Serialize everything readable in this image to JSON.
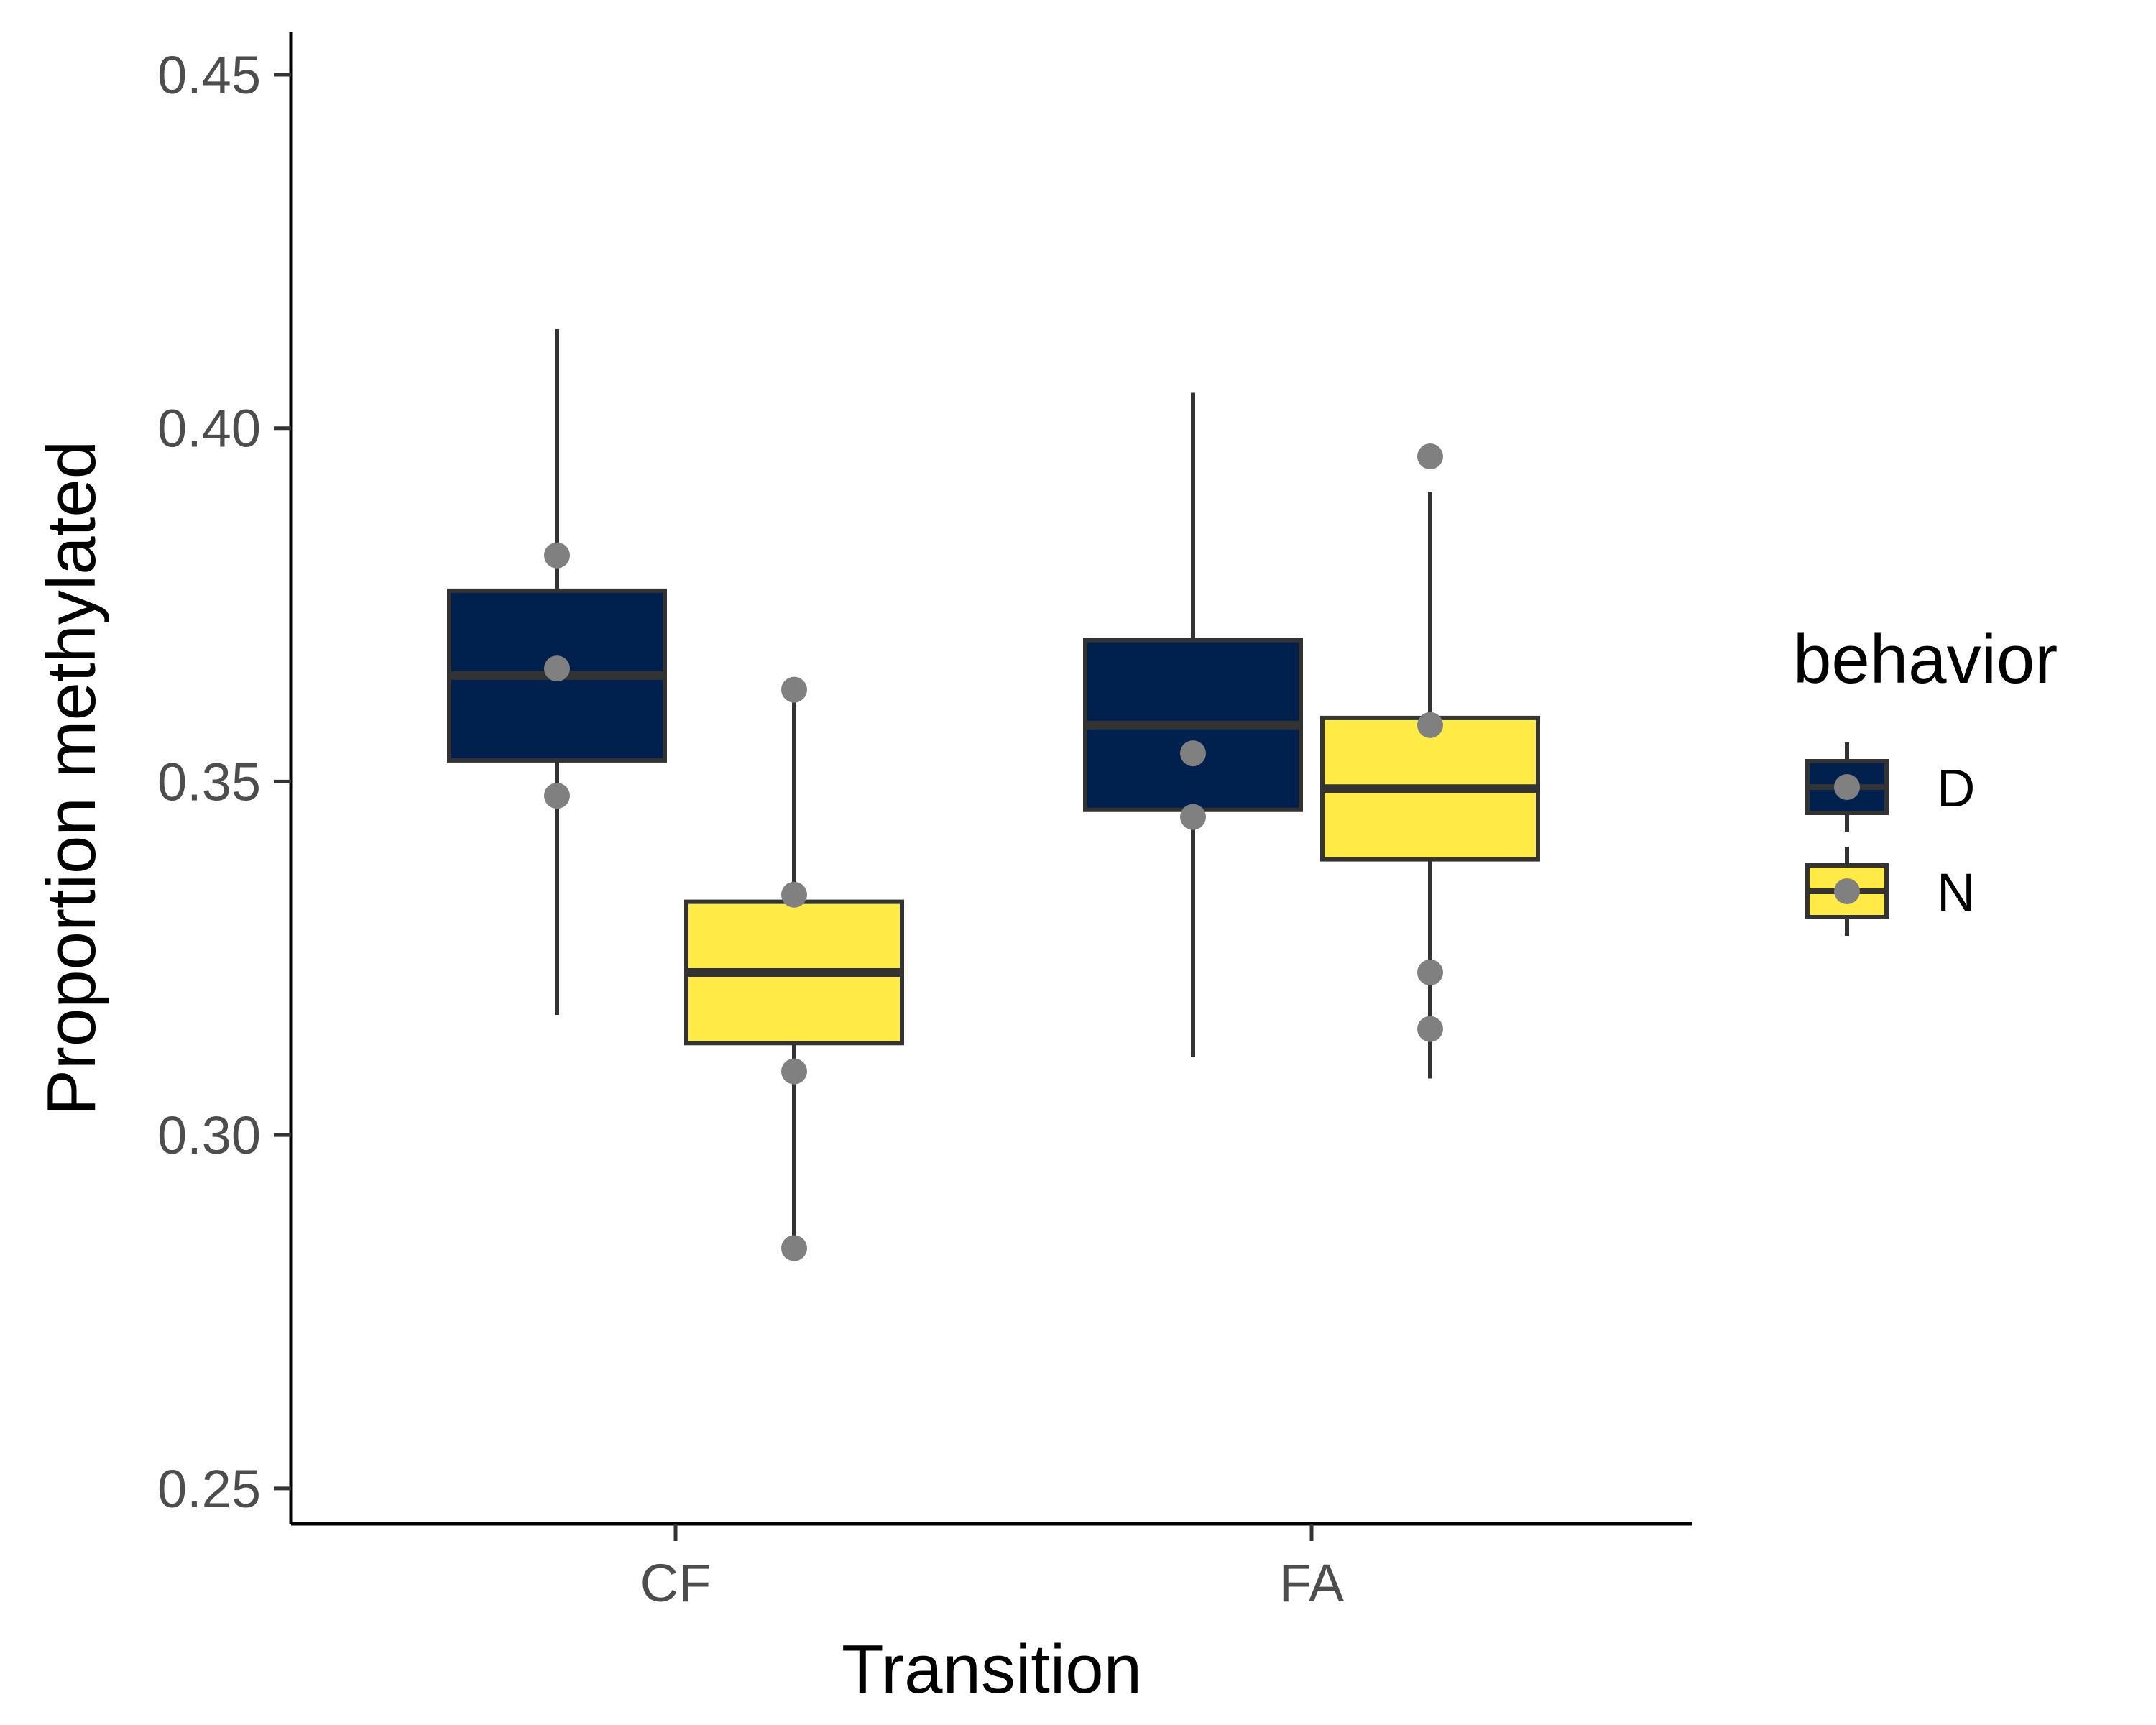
{
  "chart_data": {
    "type": "box",
    "xlabel": "Transition",
    "ylabel": "Proportion methylated",
    "ylim": [
      0.245,
      0.456
    ],
    "yticks": [
      0.25,
      0.3,
      0.35,
      0.4,
      0.45
    ],
    "ytick_labels": [
      "0.25",
      "0.30",
      "0.35",
      "0.40",
      "0.45"
    ],
    "categories": [
      "CF",
      "FA"
    ],
    "grid": false,
    "legend": {
      "title": "behavior",
      "position": "right"
    },
    "series": [
      {
        "name": "D",
        "color": "#00204d",
        "boxes": [
          {
            "category": "CF",
            "whisker_low": 0.317,
            "q1": 0.353,
            "median": 0.365,
            "q3": 0.377,
            "whisker_high": 0.414
          },
          {
            "category": "FA",
            "whisker_low": 0.311,
            "q1": 0.346,
            "median": 0.358,
            "q3": 0.37,
            "whisker_high": 0.405
          }
        ],
        "points": [
          {
            "category": "CF",
            "values": [
              0.382,
              0.366,
              0.348
            ]
          },
          {
            "category": "FA",
            "values": [
              0.354,
              0.345
            ]
          }
        ]
      },
      {
        "name": "N",
        "color": "#ffea46",
        "boxes": [
          {
            "category": "CF",
            "whisker_low": 0.284,
            "q1": 0.313,
            "median": 0.323,
            "q3": 0.333,
            "whisker_high": 0.363
          },
          {
            "category": "FA",
            "whisker_low": 0.308,
            "q1": 0.339,
            "median": 0.349,
            "q3": 0.359,
            "whisker_high": 0.391
          }
        ],
        "points": [
          {
            "category": "CF",
            "values": [
              0.363,
              0.334,
              0.309,
              0.284
            ]
          },
          {
            "category": "FA",
            "values": [
              0.396,
              0.358,
              0.323,
              0.315
            ]
          }
        ]
      }
    ],
    "point_color": "#808080",
    "line_color": "#333333"
  }
}
